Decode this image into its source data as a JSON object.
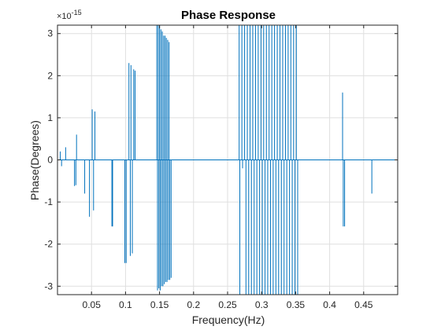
{
  "chart_data": {
    "type": "line",
    "title": "Phase Response",
    "xlabel": "Frequency(Hz)",
    "ylabel": "Phase(Degrees)",
    "exponent_label": "×10",
    "exponent_value": "-15",
    "xlim": [
      0,
      0.5
    ],
    "ylim": [
      -3.2,
      3.2
    ],
    "xticks": [
      0.05,
      0.1,
      0.15,
      0.2,
      0.25,
      0.3,
      0.35,
      0.4,
      0.45
    ],
    "xtick_labels": [
      "0.05",
      "0.1",
      "0.15",
      "0.2",
      "0.25",
      "0.3",
      "0.35",
      "0.4",
      "0.45"
    ],
    "yticks": [
      -3,
      -2,
      -1,
      0,
      1,
      2,
      3
    ],
    "ytick_labels": [
      "-3",
      "-2",
      "-1",
      "0",
      "1",
      "2",
      "3"
    ],
    "grid": true,
    "series_color": "#0072bd",
    "spikes": [
      {
        "x": 0.004,
        "y": 0.2
      },
      {
        "x": 0.006,
        "y": -0.15
      },
      {
        "x": 0.012,
        "y": 0.3
      },
      {
        "x": 0.025,
        "y": -0.62
      },
      {
        "x": 0.027,
        "y": -0.6
      },
      {
        "x": 0.028,
        "y": 0.6
      },
      {
        "x": 0.04,
        "y": -0.8
      },
      {
        "x": 0.047,
        "y": -1.35
      },
      {
        "x": 0.051,
        "y": 1.2
      },
      {
        "x": 0.053,
        "y": -1.2
      },
      {
        "x": 0.055,
        "y": 1.15
      },
      {
        "x": 0.08,
        "y": -1.58
      },
      {
        "x": 0.081,
        "y": -1.58
      },
      {
        "x": 0.099,
        "y": -2.45
      },
      {
        "x": 0.101,
        "y": -2.45
      },
      {
        "x": 0.105,
        "y": 2.3
      },
      {
        "x": 0.107,
        "y": -2.28
      },
      {
        "x": 0.108,
        "y": 2.25
      },
      {
        "x": 0.11,
        "y": -2.22
      },
      {
        "x": 0.112,
        "y": 2.15
      },
      {
        "x": 0.114,
        "y": 2.12
      },
      {
        "x": 0.146,
        "y": 3.2
      },
      {
        "x": 0.147,
        "y": -3.1
      },
      {
        "x": 0.148,
        "y": 3.2
      },
      {
        "x": 0.149,
        "y": -3.05
      },
      {
        "x": 0.15,
        "y": 3.2
      },
      {
        "x": 0.151,
        "y": -3.1
      },
      {
        "x": 0.152,
        "y": 3.1
      },
      {
        "x": 0.153,
        "y": -3.0
      },
      {
        "x": 0.154,
        "y": 3.05
      },
      {
        "x": 0.155,
        "y": -3.0
      },
      {
        "x": 0.156,
        "y": 2.95
      },
      {
        "x": 0.157,
        "y": -2.95
      },
      {
        "x": 0.158,
        "y": 2.95
      },
      {
        "x": 0.159,
        "y": -2.9
      },
      {
        "x": 0.16,
        "y": 2.9
      },
      {
        "x": 0.161,
        "y": -2.9
      },
      {
        "x": 0.162,
        "y": 2.85
      },
      {
        "x": 0.163,
        "y": -2.85
      },
      {
        "x": 0.164,
        "y": 2.8
      },
      {
        "x": 0.165,
        "y": -2.85
      },
      {
        "x": 0.167,
        "y": -2.8
      },
      {
        "x": 0.267,
        "y": 3.2
      },
      {
        "x": 0.268,
        "y": -3.2
      },
      {
        "x": 0.271,
        "y": 3.2
      },
      {
        "x": 0.272,
        "y": -0.2
      },
      {
        "x": 0.275,
        "y": 3.2
      },
      {
        "x": 0.277,
        "y": -3.2
      },
      {
        "x": 0.279,
        "y": 3.2
      },
      {
        "x": 0.281,
        "y": -3.2
      },
      {
        "x": 0.283,
        "y": 3.2
      },
      {
        "x": 0.285,
        "y": -3.2
      },
      {
        "x": 0.287,
        "y": 3.2
      },
      {
        "x": 0.289,
        "y": -3.2
      },
      {
        "x": 0.291,
        "y": 3.2
      },
      {
        "x": 0.293,
        "y": -3.2
      },
      {
        "x": 0.295,
        "y": 3.2
      },
      {
        "x": 0.297,
        "y": -3.2
      },
      {
        "x": 0.299,
        "y": 3.2
      },
      {
        "x": 0.301,
        "y": -3.2
      },
      {
        "x": 0.303,
        "y": 3.2
      },
      {
        "x": 0.305,
        "y": -3.2
      },
      {
        "x": 0.307,
        "y": 3.2
      },
      {
        "x": 0.309,
        "y": -3.2
      },
      {
        "x": 0.311,
        "y": 3.2
      },
      {
        "x": 0.313,
        "y": -3.2
      },
      {
        "x": 0.315,
        "y": 3.2
      },
      {
        "x": 0.317,
        "y": -3.2
      },
      {
        "x": 0.319,
        "y": 3.2
      },
      {
        "x": 0.321,
        "y": -3.2
      },
      {
        "x": 0.323,
        "y": 3.2
      },
      {
        "x": 0.325,
        "y": -3.2
      },
      {
        "x": 0.327,
        "y": 3.2
      },
      {
        "x": 0.329,
        "y": -3.2
      },
      {
        "x": 0.331,
        "y": 3.2
      },
      {
        "x": 0.333,
        "y": -3.2
      },
      {
        "x": 0.335,
        "y": 3.2
      },
      {
        "x": 0.337,
        "y": -3.2
      },
      {
        "x": 0.339,
        "y": 3.2
      },
      {
        "x": 0.341,
        "y": -3.2
      },
      {
        "x": 0.343,
        "y": 3.2
      },
      {
        "x": 0.345,
        "y": -3.2
      },
      {
        "x": 0.347,
        "y": 3.2
      },
      {
        "x": 0.349,
        "y": -3.2
      },
      {
        "x": 0.351,
        "y": 3.2
      },
      {
        "x": 0.353,
        "y": -3.2
      },
      {
        "x": 0.419,
        "y": 1.6
      },
      {
        "x": 0.42,
        "y": -1.58
      },
      {
        "x": 0.422,
        "y": -1.58
      },
      {
        "x": 0.462,
        "y": -0.8
      }
    ]
  }
}
